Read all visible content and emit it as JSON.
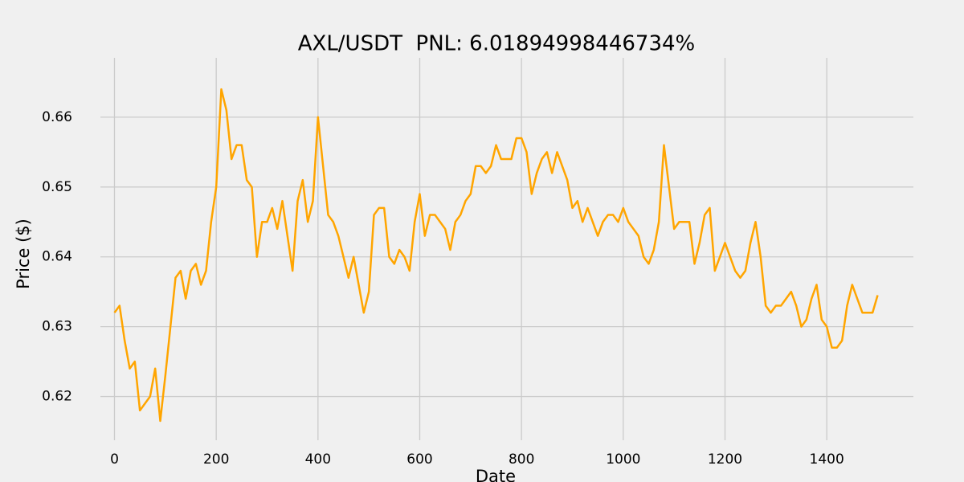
{
  "chart_data": {
    "type": "line",
    "title": "AXL/USDT  PNL: 6.01894998446734%",
    "xlabel": "Date",
    "ylabel": "Price ($)",
    "color": "#ffa500",
    "grid": true,
    "x": [
      0,
      10,
      20,
      30,
      40,
      50,
      60,
      70,
      80,
      90,
      100,
      110,
      120,
      130,
      140,
      150,
      160,
      170,
      180,
      190,
      200,
      210,
      220,
      230,
      240,
      250,
      260,
      270,
      280,
      290,
      300,
      310,
      320,
      330,
      340,
      350,
      360,
      370,
      380,
      390,
      400,
      410,
      420,
      430,
      440,
      450,
      460,
      470,
      480,
      490,
      500,
      510,
      520,
      530,
      540,
      550,
      560,
      570,
      580,
      590,
      600,
      610,
      620,
      630,
      640,
      650,
      660,
      670,
      680,
      690,
      700,
      710,
      720,
      730,
      740,
      750,
      760,
      770,
      780,
      790,
      800,
      810,
      820,
      830,
      840,
      850,
      860,
      870,
      880,
      890,
      900,
      910,
      920,
      930,
      940,
      950,
      960,
      970,
      980,
      990,
      1000,
      1010,
      1020,
      1030,
      1040,
      1050,
      1060,
      1070,
      1080,
      1090,
      1100,
      1110,
      1120,
      1130,
      1140,
      1150,
      1160,
      1170,
      1180,
      1190,
      1200,
      1210,
      1220,
      1230,
      1240,
      1250,
      1260,
      1270,
      1280,
      1290,
      1300,
      1310,
      1320,
      1330,
      1340,
      1350,
      1360,
      1370,
      1380,
      1390,
      1400,
      1410,
      1420,
      1430,
      1440,
      1450,
      1460,
      1470,
      1480,
      1490,
      1500
    ],
    "values": [
      0.632,
      0.633,
      0.628,
      0.624,
      0.625,
      0.618,
      0.619,
      0.62,
      0.624,
      0.6165,
      0.623,
      0.63,
      0.637,
      0.638,
      0.634,
      0.638,
      0.639,
      0.636,
      0.638,
      0.645,
      0.65,
      0.664,
      0.661,
      0.654,
      0.656,
      0.656,
      0.651,
      0.65,
      0.64,
      0.645,
      0.645,
      0.647,
      0.644,
      0.648,
      0.643,
      0.638,
      0.648,
      0.651,
      0.645,
      0.648,
      0.66,
      0.653,
      0.646,
      0.645,
      0.643,
      0.64,
      0.637,
      0.64,
      0.636,
      0.632,
      0.635,
      0.646,
      0.647,
      0.647,
      0.64,
      0.639,
      0.641,
      0.64,
      0.638,
      0.645,
      0.649,
      0.643,
      0.646,
      0.646,
      0.645,
      0.644,
      0.641,
      0.645,
      0.646,
      0.648,
      0.649,
      0.653,
      0.653,
      0.652,
      0.653,
      0.656,
      0.654,
      0.654,
      0.654,
      0.657,
      0.657,
      0.655,
      0.649,
      0.652,
      0.654,
      0.655,
      0.652,
      0.655,
      0.653,
      0.651,
      0.647,
      0.648,
      0.645,
      0.647,
      0.645,
      0.643,
      0.645,
      0.646,
      0.646,
      0.645,
      0.647,
      0.645,
      0.644,
      0.643,
      0.64,
      0.639,
      0.641,
      0.645,
      0.656,
      0.65,
      0.644,
      0.645,
      0.645,
      0.645,
      0.639,
      0.642,
      0.646,
      0.647,
      0.638,
      0.64,
      0.642,
      0.64,
      0.638,
      0.637,
      0.638,
      0.642,
      0.645,
      0.64,
      0.633,
      0.632,
      0.633,
      0.633,
      0.634,
      0.635,
      0.633,
      0.63,
      0.631,
      0.634,
      0.636,
      0.631,
      0.63,
      0.627,
      0.627,
      0.628,
      0.633,
      0.636,
      0.634,
      0.632,
      0.632,
      0.632,
      0.6345
    ],
    "xlim": [
      -75,
      1575
    ],
    "ylim": [
      0.6127,
      0.6685
    ],
    "xticks": [
      0,
      200,
      400,
      600,
      800,
      1000,
      1200,
      1400
    ],
    "yticks": [
      0.62,
      0.63,
      0.64,
      0.65,
      0.66
    ]
  }
}
